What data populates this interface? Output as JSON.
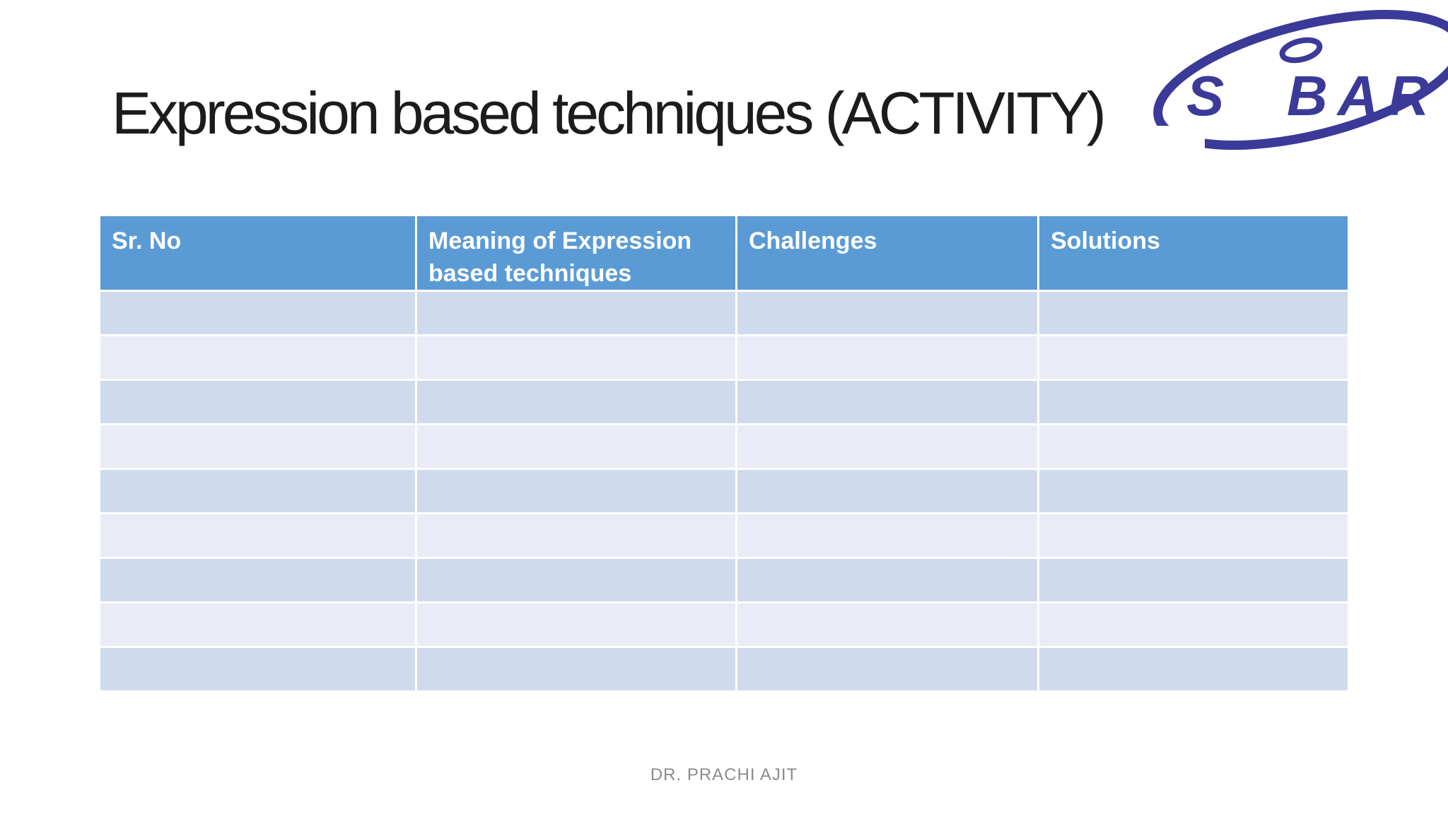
{
  "slide": {
    "title": "Expression based techniques (ACTIVITY)",
    "footer": "DR. PRACHI AJIT",
    "background": "#ffffff",
    "title_color": "#1c1c1c",
    "footer_color": "#8c8c8c"
  },
  "logo": {
    "name": "SIBAR",
    "part_s": "S",
    "part_bar": "BAR",
    "color": "#3b3a99"
  },
  "table": {
    "columns": [
      "Sr. No",
      "Meaning of Expression based techniques",
      "Challenges",
      "Solutions"
    ],
    "rows": [
      {
        "cells": [
          "",
          "",
          "",
          ""
        ]
      },
      {
        "cells": [
          "",
          "",
          "",
          ""
        ]
      },
      {
        "cells": [
          "",
          "",
          "",
          ""
        ]
      },
      {
        "cells": [
          "",
          "",
          "",
          ""
        ]
      },
      {
        "cells": [
          "",
          "",
          "",
          ""
        ]
      },
      {
        "cells": [
          "",
          "",
          "",
          ""
        ]
      },
      {
        "cells": [
          "",
          "",
          "",
          ""
        ]
      },
      {
        "cells": [
          "",
          "",
          "",
          ""
        ]
      },
      {
        "cells": [
          "",
          "",
          "",
          ""
        ]
      }
    ],
    "header_bg": "#5b9bd5",
    "header_text_color": "#ffffff",
    "band_dark": "#cfdbec",
    "band_light": "#e9ecf6"
  }
}
